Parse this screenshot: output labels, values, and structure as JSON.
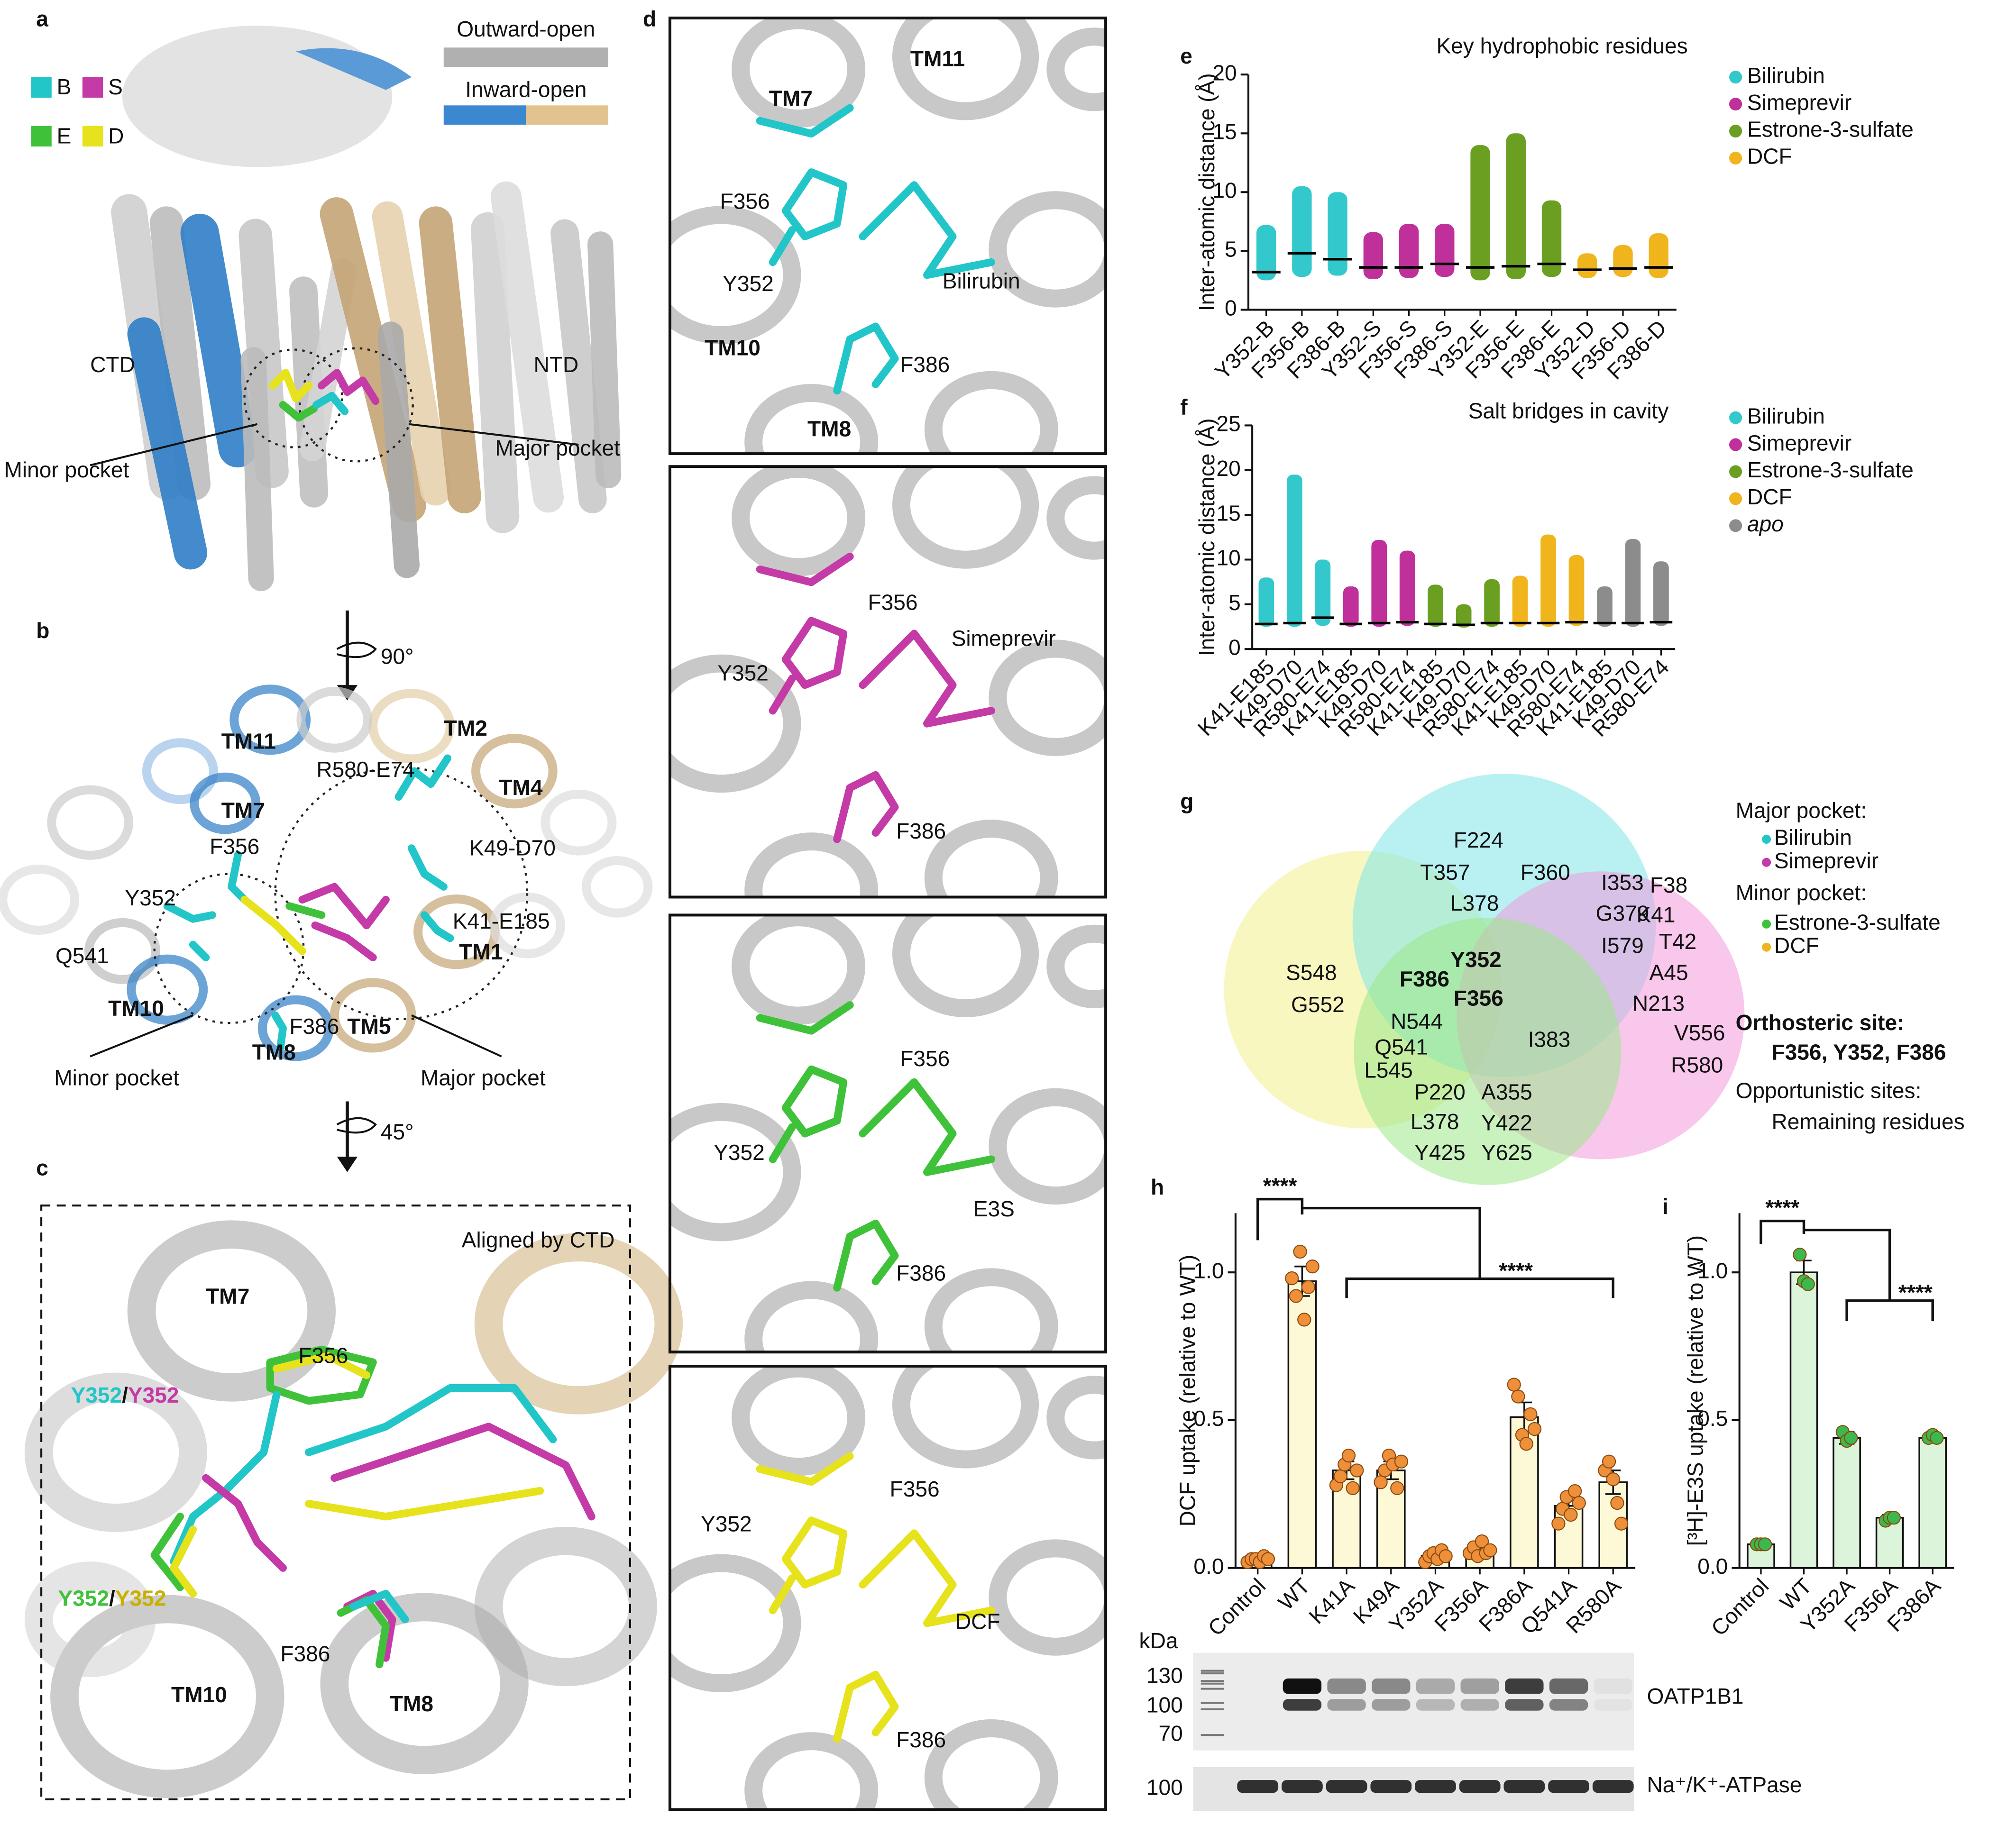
{
  "panel_a": {
    "label": "a",
    "ligands": [
      "B",
      "S",
      "E",
      "D"
    ],
    "states": [
      "Outward-open",
      "Inward-open"
    ],
    "domains": [
      "CTD",
      "NTD"
    ],
    "pockets": [
      "Minor pocket",
      "Major pocket"
    ]
  },
  "panel_b": {
    "label": "b",
    "rotation": "90°",
    "helices": [
      "TM11",
      "TM2",
      "TM4",
      "TM7",
      "TM1",
      "TM10",
      "TM5",
      "TM8"
    ],
    "residues": [
      "R580-E74",
      "F356",
      "K49-D70",
      "Y352",
      "K41-E185",
      "Q541",
      "F386"
    ],
    "pockets": [
      "Minor pocket",
      "Major pocket"
    ]
  },
  "panel_c": {
    "label": "c",
    "rotation": "45°",
    "note": "Aligned by CTD",
    "helices": [
      "TM7",
      "TM10",
      "TM8"
    ],
    "residues": [
      "F356",
      "F386"
    ],
    "pairs": [
      [
        "Y352",
        "/",
        "Y352"
      ],
      [
        "Y352",
        "/",
        "Y352"
      ]
    ]
  },
  "panel_d": {
    "label": "d",
    "views": [
      {
        "helices": [
          "TM11",
          "TM7",
          "TM10",
          "TM8"
        ],
        "residues": [
          "F356",
          "Y352",
          "F386"
        ],
        "ligand": "Bilirubin"
      },
      {
        "residues": [
          "F356",
          "Y352",
          "F386"
        ],
        "ligand": "Simeprevir"
      },
      {
        "residues": [
          "F356",
          "Y352",
          "F386"
        ],
        "ligand": "E3S"
      },
      {
        "residues": [
          "F356",
          "Y352",
          "F386"
        ],
        "ligand": "DCF"
      }
    ]
  },
  "panel_g": {
    "label": "g",
    "residues": [
      "F224",
      "T357",
      "F360",
      "L378",
      "I353",
      "G379",
      "I579",
      "F38",
      "K41",
      "T42",
      "A45",
      "N213",
      "V556",
      "R580",
      "S548",
      "G552",
      "Y352",
      "F386",
      "F356",
      "N544",
      "Q541",
      "L545",
      "I383",
      "P220",
      "A355",
      "L378",
      "Y422",
      "Y425",
      "Y625"
    ],
    "legend": [
      "Major pocket:",
      "Bilirubin",
      "Simeprevir",
      "Minor pocket:",
      "Estrone-3-sulfate",
      "DCF",
      "Orthosteric site:",
      "F356, Y352, F386",
      "Opportunistic sites:",
      "Remaining residues"
    ]
  },
  "blot": {
    "unit": "kDa",
    "markers": [
      130,
      100,
      70
    ],
    "protein": "OATP1B1",
    "loading_marker": 100,
    "loading": "Na⁺/K⁺-ATPase"
  },
  "chart_data": [
    {
      "type": "strip",
      "label": "e",
      "title": "Key hydrophobic residues",
      "ylabel": "Inter-atomic distance (Å)",
      "categories": [
        "Y352-B",
        "F356-B",
        "F386-B",
        "Y352-S",
        "F356-S",
        "F386-S",
        "Y352-E",
        "F356-E",
        "F386-E",
        "Y352-D",
        "F356-D",
        "F386-D"
      ],
      "ylim": [
        0,
        20
      ],
      "yticks": [
        0,
        5,
        10,
        15,
        20
      ],
      "series": [
        {
          "name": "Bilirubin",
          "color": "#33c9cc",
          "values": [
            3.2,
            4.8,
            4.3,
            null,
            null,
            null,
            null,
            null,
            null,
            null,
            null,
            null
          ],
          "min": [
            2.5,
            2.8,
            2.9,
            null,
            null,
            null,
            null,
            null,
            null,
            null,
            null,
            null
          ],
          "max": [
            7.2,
            10.5,
            10.0,
            null,
            null,
            null,
            null,
            null,
            null,
            null,
            null,
            null
          ]
        },
        {
          "name": "Simeprevir",
          "color": "#c0309a",
          "values": [
            null,
            null,
            null,
            3.6,
            3.6,
            3.9,
            null,
            null,
            null,
            null,
            null,
            null
          ],
          "min": [
            null,
            null,
            null,
            2.6,
            2.7,
            2.8,
            null,
            null,
            null,
            null,
            null,
            null
          ],
          "max": [
            null,
            null,
            null,
            6.6,
            7.3,
            7.3,
            null,
            null,
            null,
            null,
            null,
            null
          ]
        },
        {
          "name": "Estrone-3-sulfate",
          "color": "#6a9f22",
          "values": [
            null,
            null,
            null,
            null,
            null,
            null,
            3.6,
            3.7,
            3.9,
            null,
            null,
            null
          ],
          "min": [
            null,
            null,
            null,
            null,
            null,
            null,
            2.5,
            2.6,
            2.8,
            null,
            null,
            null
          ],
          "max": [
            null,
            null,
            null,
            null,
            null,
            null,
            14.0,
            15.0,
            9.3,
            null,
            null,
            null
          ]
        },
        {
          "name": "DCF",
          "color": "#f0b51c",
          "values": [
            null,
            null,
            null,
            null,
            null,
            null,
            null,
            null,
            null,
            3.4,
            3.5,
            3.6
          ],
          "min": [
            null,
            null,
            null,
            null,
            null,
            null,
            null,
            null,
            null,
            2.7,
            2.8,
            2.7
          ],
          "max": [
            null,
            null,
            null,
            null,
            null,
            null,
            null,
            null,
            null,
            4.8,
            5.5,
            6.5
          ]
        }
      ]
    },
    {
      "type": "strip",
      "label": "f",
      "title": "Salt bridges in cavity",
      "ylabel": "Inter-atomic distance (Å)",
      "categories": [
        "K41-E185",
        "K49-D70",
        "R580-E74",
        "K41-E185",
        "K49-D70",
        "R580-E74",
        "K41-E185",
        "K49-D70",
        "R580-E74",
        "K41-E185",
        "K49-D70",
        "R580-E74",
        "K41-E185",
        "K49-D70",
        "R580-E74"
      ],
      "ylim": [
        0,
        25
      ],
      "yticks": [
        0,
        5,
        10,
        15,
        20,
        25
      ],
      "series": [
        {
          "name": "Bilirubin",
          "color": "#33c9cc",
          "values": [
            2.8,
            2.9,
            3.5,
            null,
            null,
            null,
            null,
            null,
            null,
            null,
            null,
            null,
            null,
            null,
            null
          ],
          "min": [
            2.5,
            2.5,
            2.6,
            null,
            null,
            null,
            null,
            null,
            null,
            null,
            null,
            null,
            null,
            null,
            null
          ],
          "max": [
            8.0,
            19.5,
            10.0,
            null,
            null,
            null,
            null,
            null,
            null,
            null,
            null,
            null,
            null,
            null,
            null
          ]
        },
        {
          "name": "Simeprevir",
          "color": "#c0309a",
          "values": [
            null,
            null,
            null,
            2.8,
            2.9,
            3.0,
            null,
            null,
            null,
            null,
            null,
            null,
            null,
            null,
            null
          ],
          "min": [
            null,
            null,
            null,
            2.5,
            2.5,
            2.6,
            null,
            null,
            null,
            null,
            null,
            null,
            null,
            null,
            null
          ],
          "max": [
            null,
            null,
            null,
            7.0,
            12.2,
            11.0,
            null,
            null,
            null,
            null,
            null,
            null,
            null,
            null,
            null
          ]
        },
        {
          "name": "Estrone-3-sulfate",
          "color": "#6a9f22",
          "values": [
            null,
            null,
            null,
            null,
            null,
            null,
            2.8,
            2.7,
            2.9,
            null,
            null,
            null,
            null,
            null,
            null
          ],
          "min": [
            null,
            null,
            null,
            null,
            null,
            null,
            2.5,
            2.4,
            2.5,
            null,
            null,
            null,
            null,
            null,
            null
          ],
          "max": [
            null,
            null,
            null,
            null,
            null,
            null,
            7.2,
            5.0,
            7.8,
            null,
            null,
            null,
            null,
            null,
            null
          ]
        },
        {
          "name": "DCF",
          "color": "#f0b51c",
          "values": [
            null,
            null,
            null,
            null,
            null,
            null,
            null,
            null,
            null,
            2.9,
            2.9,
            3.0,
            null,
            null,
            null
          ],
          "min": [
            null,
            null,
            null,
            null,
            null,
            null,
            null,
            null,
            null,
            2.5,
            2.5,
            2.6,
            null,
            null,
            null
          ],
          "max": [
            null,
            null,
            null,
            null,
            null,
            null,
            null,
            null,
            null,
            8.2,
            12.8,
            10.5,
            null,
            null,
            null
          ]
        },
        {
          "name": "apo",
          "italic": true,
          "color": "#8c8c8c",
          "values": [
            null,
            null,
            null,
            null,
            null,
            null,
            null,
            null,
            null,
            null,
            null,
            null,
            2.9,
            2.9,
            3.0
          ],
          "min": [
            null,
            null,
            null,
            null,
            null,
            null,
            null,
            null,
            null,
            null,
            null,
            null,
            2.5,
            2.5,
            2.6
          ],
          "max": [
            null,
            null,
            null,
            null,
            null,
            null,
            null,
            null,
            null,
            null,
            null,
            null,
            7.0,
            12.3,
            9.8
          ]
        }
      ]
    },
    {
      "type": "bar",
      "label": "h",
      "ylabel": "DCF uptake (relative to WT)",
      "categories": [
        "Control",
        "WT",
        "K41A",
        "K49A",
        "Y352A",
        "F356A",
        "F386A",
        "Q541A",
        "R580A"
      ],
      "values": [
        0.03,
        0.97,
        0.33,
        0.33,
        0.04,
        0.06,
        0.51,
        0.21,
        0.29
      ],
      "errors": [
        0.01,
        0.05,
        0.03,
        0.03,
        0.01,
        0.02,
        0.05,
        0.03,
        0.04
      ],
      "points": [
        [
          0.02,
          0.03,
          0.03,
          0.02,
          0.04,
          0.03
        ],
        [
          0.98,
          0.92,
          1.07,
          0.84,
          0.95,
          1.02
        ],
        [
          0.28,
          0.31,
          0.35,
          0.38,
          0.27,
          0.33
        ],
        [
          0.29,
          0.33,
          0.38,
          0.35,
          0.27,
          0.36
        ],
        [
          0.02,
          0.04,
          0.05,
          0.03,
          0.06,
          0.04
        ],
        [
          0.05,
          0.07,
          0.04,
          0.09,
          0.05,
          0.06
        ],
        [
          0.62,
          0.58,
          0.45,
          0.42,
          0.52,
          0.47
        ],
        [
          0.15,
          0.2,
          0.24,
          0.18,
          0.26,
          0.22
        ],
        [
          0.33,
          0.36,
          0.3,
          0.22,
          0.15
        ]
      ],
      "color": "#fdf8d6",
      "point_color": "#ee8f3a",
      "ylim": [
        0,
        1.2
      ],
      "yticks": [
        {
          "value": 0,
          "label": "0.0"
        },
        {
          "value": 0.5,
          "label": "0.5"
        },
        {
          "value": 1,
          "label": "1.0"
        }
      ],
      "annotations": [
        "****",
        "****"
      ]
    },
    {
      "type": "bar",
      "label": "i",
      "ylabel": "[³H]-E3S uptake (relative to WT)",
      "categories": [
        "Control",
        "WT",
        "Y352A",
        "F356A",
        "F386A"
      ],
      "values": [
        0.08,
        1.0,
        0.44,
        0.17,
        0.44
      ],
      "errors": [
        0.005,
        0.04,
        0.02,
        0.01,
        0.01
      ],
      "points": [
        [
          0.08,
          0.08,
          0.08
        ],
        [
          1.06,
          0.97,
          0.96
        ],
        [
          0.46,
          0.43,
          0.44
        ],
        [
          0.16,
          0.17,
          0.17
        ],
        [
          0.44,
          0.45,
          0.44
        ]
      ],
      "color": "#dcf4da",
      "point_color": "#3db84c",
      "ylim": [
        0,
        1.2
      ],
      "yticks": [
        {
          "value": 0,
          "label": "0.0"
        },
        {
          "value": 0.5,
          "label": "0.5"
        },
        {
          "value": 1,
          "label": "1.0"
        }
      ],
      "annotations": [
        "****",
        "****"
      ]
    }
  ]
}
